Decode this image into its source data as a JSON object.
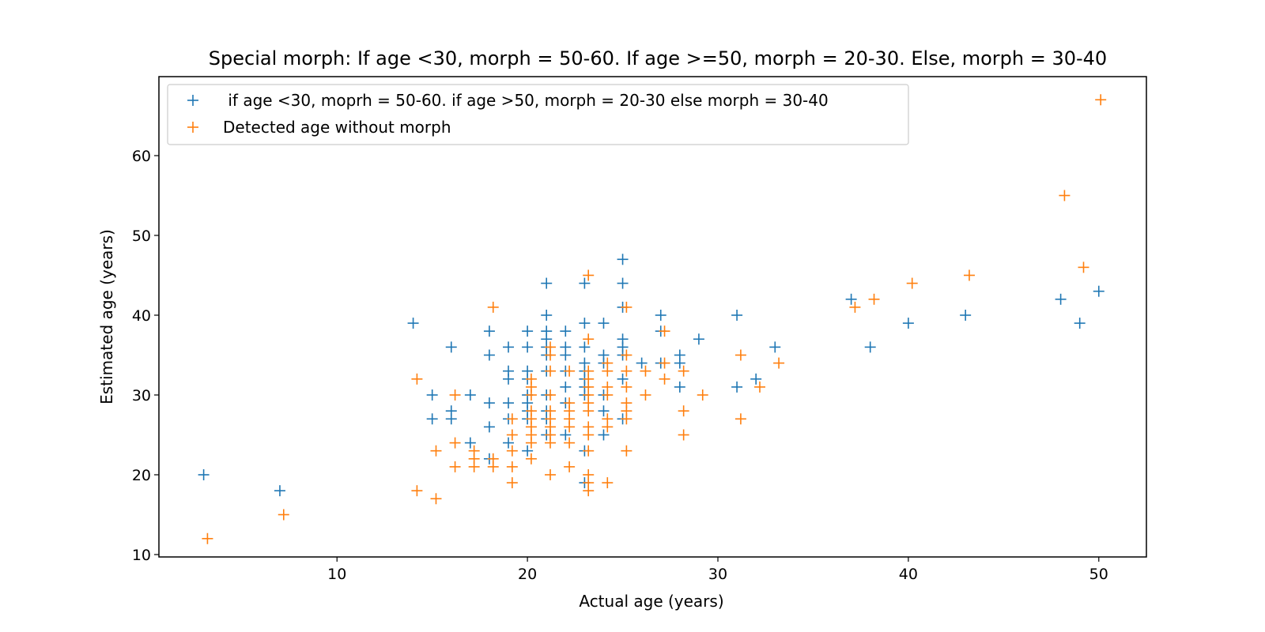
{
  "chart_data": {
    "type": "scatter",
    "title": "Special morph: If age <30, morph = 50-60. If age >=50, morph = 20-30. Else, morph = 30-40",
    "xlabel": "Actual age (years)",
    "ylabel": "Estimated age (years)",
    "xlim": [
      0.65,
      52.5
    ],
    "ylim": [
      9.7,
      69.9
    ],
    "xticks": [
      10,
      20,
      30,
      40,
      50
    ],
    "yticks": [
      10,
      20,
      30,
      40,
      50,
      60
    ],
    "grid": false,
    "legend_position": "upper-left",
    "series": [
      {
        "name": " if age <30, moprh = 50-60. if age >50, morph = 20-30 else morph = 30-40",
        "color": "#1f77b4",
        "marker": "plus",
        "points": [
          [
            3,
            20
          ],
          [
            7,
            18
          ],
          [
            14,
            39
          ],
          [
            15,
            30
          ],
          [
            15,
            27
          ],
          [
            16,
            36
          ],
          [
            16,
            28
          ],
          [
            16,
            27
          ],
          [
            17,
            30
          ],
          [
            17,
            24
          ],
          [
            18,
            38
          ],
          [
            18,
            35
          ],
          [
            18,
            29
          ],
          [
            18,
            26
          ],
          [
            18,
            22
          ],
          [
            19,
            36
          ],
          [
            19,
            33
          ],
          [
            19,
            32
          ],
          [
            19,
            29
          ],
          [
            19,
            27
          ],
          [
            19,
            24
          ],
          [
            20,
            38
          ],
          [
            20,
            36
          ],
          [
            20,
            33
          ],
          [
            20,
            32
          ],
          [
            20,
            30
          ],
          [
            20,
            29
          ],
          [
            20,
            28
          ],
          [
            20,
            27
          ],
          [
            20,
            23
          ],
          [
            21,
            44
          ],
          [
            21,
            40
          ],
          [
            21,
            38
          ],
          [
            21,
            37
          ],
          [
            21,
            36
          ],
          [
            21,
            35
          ],
          [
            21,
            33
          ],
          [
            21,
            30
          ],
          [
            21,
            28
          ],
          [
            21,
            27
          ],
          [
            21,
            25
          ],
          [
            22,
            38
          ],
          [
            22,
            36
          ],
          [
            22,
            35
          ],
          [
            22,
            33
          ],
          [
            22,
            31
          ],
          [
            22,
            29
          ],
          [
            22,
            25
          ],
          [
            23,
            44
          ],
          [
            23,
            39
          ],
          [
            23,
            36
          ],
          [
            23,
            34
          ],
          [
            23,
            33
          ],
          [
            23,
            32
          ],
          [
            23,
            31
          ],
          [
            23,
            30
          ],
          [
            23,
            23
          ],
          [
            23,
            19
          ],
          [
            24,
            39
          ],
          [
            24,
            35
          ],
          [
            24,
            34
          ],
          [
            24,
            30
          ],
          [
            24,
            28
          ],
          [
            24,
            25
          ],
          [
            25,
            47
          ],
          [
            25,
            44
          ],
          [
            25,
            41
          ],
          [
            25,
            37
          ],
          [
            25,
            36
          ],
          [
            25,
            35
          ],
          [
            25,
            32
          ],
          [
            25,
            27
          ],
          [
            26,
            34
          ],
          [
            27,
            40
          ],
          [
            27,
            38
          ],
          [
            27,
            34
          ],
          [
            28,
            35
          ],
          [
            28,
            34
          ],
          [
            28,
            31
          ],
          [
            29,
            37
          ],
          [
            31,
            40
          ],
          [
            31,
            31
          ],
          [
            32,
            32
          ],
          [
            33,
            36
          ],
          [
            37,
            42
          ],
          [
            38,
            36
          ],
          [
            40,
            39
          ],
          [
            43,
            40
          ],
          [
            48,
            42
          ],
          [
            49,
            39
          ],
          [
            50,
            43
          ]
        ]
      },
      {
        "name": "Detected age without morph",
        "color": "#ff7f0e",
        "marker": "plus",
        "points": [
          [
            3.2,
            12
          ],
          [
            7.2,
            15
          ],
          [
            14.2,
            32
          ],
          [
            14.2,
            18
          ],
          [
            15.2,
            23
          ],
          [
            15.2,
            17
          ],
          [
            16.2,
            30
          ],
          [
            16.2,
            24
          ],
          [
            16.2,
            21
          ],
          [
            17.2,
            23
          ],
          [
            17.2,
            22
          ],
          [
            17.2,
            21
          ],
          [
            18.2,
            41
          ],
          [
            18.2,
            22
          ],
          [
            18.2,
            21
          ],
          [
            19.2,
            27
          ],
          [
            19.2,
            25
          ],
          [
            19.2,
            23
          ],
          [
            19.2,
            21
          ],
          [
            19.2,
            19
          ],
          [
            20.2,
            32
          ],
          [
            20.2,
            31
          ],
          [
            20.2,
            30
          ],
          [
            20.2,
            28
          ],
          [
            20.2,
            27
          ],
          [
            20.2,
            26
          ],
          [
            20.2,
            25
          ],
          [
            20.2,
            24
          ],
          [
            20.2,
            22
          ],
          [
            21.2,
            36
          ],
          [
            21.2,
            35
          ],
          [
            21.2,
            33
          ],
          [
            21.2,
            30
          ],
          [
            21.2,
            28
          ],
          [
            21.2,
            27
          ],
          [
            21.2,
            26
          ],
          [
            21.2,
            25
          ],
          [
            21.2,
            24
          ],
          [
            21.2,
            20
          ],
          [
            22.2,
            33
          ],
          [
            22.2,
            29
          ],
          [
            22.2,
            28
          ],
          [
            22.2,
            27
          ],
          [
            22.2,
            26
          ],
          [
            22.2,
            24
          ],
          [
            22.2,
            21
          ],
          [
            23.2,
            45
          ],
          [
            23.2,
            37
          ],
          [
            23.2,
            33
          ],
          [
            23.2,
            32
          ],
          [
            23.2,
            31
          ],
          [
            23.2,
            30
          ],
          [
            23.2,
            29
          ],
          [
            23.2,
            28
          ],
          [
            23.2,
            26
          ],
          [
            23.2,
            25
          ],
          [
            23.2,
            23
          ],
          [
            23.2,
            20
          ],
          [
            23.2,
            19
          ],
          [
            23.2,
            18
          ],
          [
            24.2,
            34
          ],
          [
            24.2,
            33
          ],
          [
            24.2,
            31
          ],
          [
            24.2,
            30
          ],
          [
            24.2,
            27
          ],
          [
            24.2,
            26
          ],
          [
            24.2,
            19
          ],
          [
            25.2,
            41
          ],
          [
            25.2,
            35
          ],
          [
            25.2,
            33
          ],
          [
            25.2,
            31
          ],
          [
            25.2,
            29
          ],
          [
            25.2,
            28
          ],
          [
            25.2,
            27
          ],
          [
            25.2,
            23
          ],
          [
            26.2,
            33
          ],
          [
            26.2,
            30
          ],
          [
            27.2,
            38
          ],
          [
            27.2,
            34
          ],
          [
            27.2,
            32
          ],
          [
            28.2,
            33
          ],
          [
            28.2,
            28
          ],
          [
            28.2,
            25
          ],
          [
            29.2,
            30
          ],
          [
            31.2,
            35
          ],
          [
            31.2,
            27
          ],
          [
            32.2,
            31
          ],
          [
            33.2,
            34
          ],
          [
            37.2,
            41
          ],
          [
            38.2,
            42
          ],
          [
            40.2,
            44
          ],
          [
            43.2,
            45
          ],
          [
            48.2,
            55
          ],
          [
            49.2,
            46
          ],
          [
            50.1,
            67
          ]
        ]
      }
    ]
  }
}
